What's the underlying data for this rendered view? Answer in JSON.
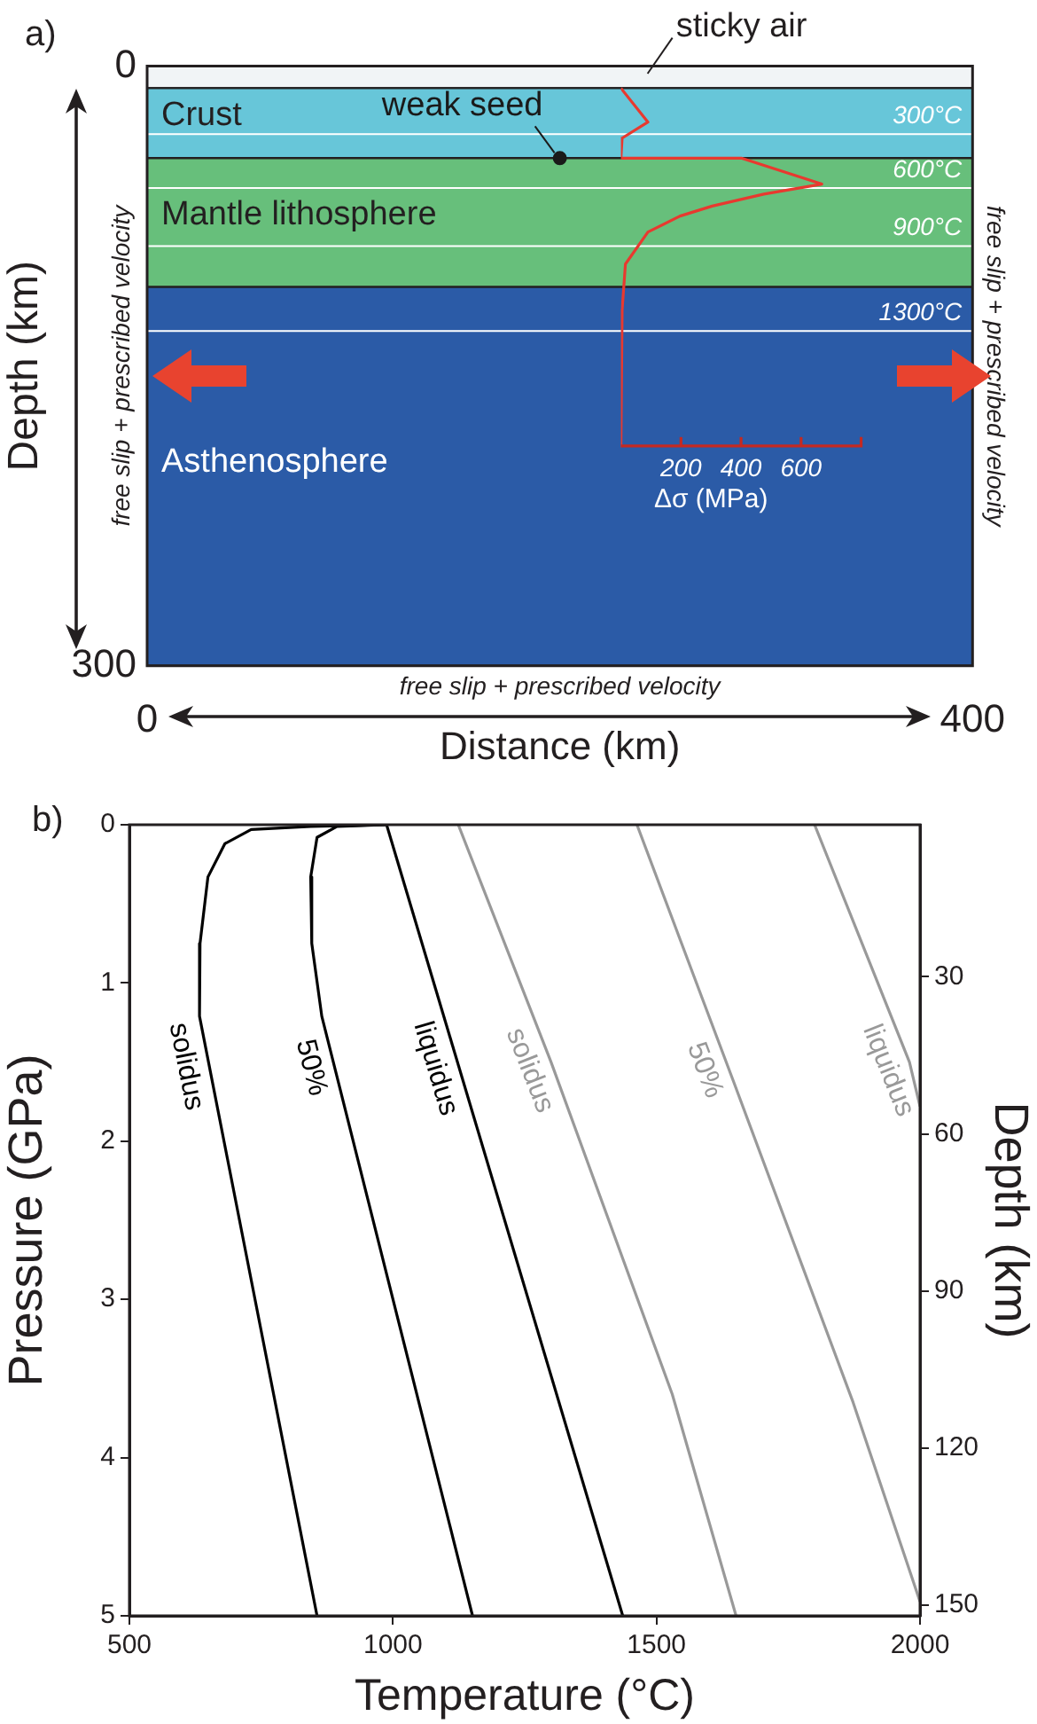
{
  "chart_data": [
    {
      "type": "line",
      "title": "a)",
      "xlabel": "Distance (km)",
      "ylabel": "Depth (km)",
      "x2label": "Δσ (MPa)",
      "xlim": [
        0,
        400
      ],
      "xticks": [
        0,
        400
      ],
      "ylim": [
        300,
        0
      ],
      "yticks": [
        0,
        300
      ],
      "x2lim": [
        0,
        800
      ],
      "x2ticks": [
        200,
        400,
        600
      ],
      "grid": false,
      "legend": false,
      "series": [
        {
          "axis": "x2",
          "color": "#e8392f",
          "x": [
            0,
            90,
            4,
            0,
            401,
            669,
            476,
            304,
            197,
            90,
            15,
            4,
            0
          ],
          "values": [
            11,
            28,
            36,
            46,
            46,
            59,
            64,
            70,
            75,
            83,
            99,
            122,
            190
          ]
        },
        {
          "type": "scatter",
          "name": "weak seed",
          "color": "#1a1a1a",
          "marker": "circle",
          "x": [
            200
          ],
          "values": [
            46
          ]
        }
      ],
      "bands": [
        {
          "axis": "y",
          "from": 0,
          "to": 11,
          "label": "sticky air",
          "color": "#f1f4f6"
        },
        {
          "axis": "y",
          "from": 11,
          "to": 46,
          "label": "Crust",
          "color": "#67c6d9"
        },
        {
          "axis": "y",
          "from": 46,
          "to": 110.5,
          "label": "Mantle lithosphere",
          "color": "#67bf7b"
        },
        {
          "axis": "y",
          "from": 110.5,
          "to": 300,
          "label": "Asthenosphere",
          "color": "#2b5ba7"
        }
      ],
      "ref_lines": [
        {
          "axis": "y",
          "value": 34,
          "label": "300°C",
          "color": "#ffffff"
        },
        {
          "axis": "y",
          "value": 61,
          "label": "600°C",
          "color": "#ffffff"
        },
        {
          "axis": "y",
          "value": 90,
          "label": "900°C",
          "color": "#ffffff"
        },
        {
          "axis": "y",
          "value": 132.5,
          "label": "1300°C",
          "color": "#ffffff"
        }
      ],
      "annotations": [
        "free slip + prescribed velocity",
        "free slip + prescribed velocity",
        "free slip + prescribed velocity"
      ]
    },
    {
      "type": "line",
      "title": "b)",
      "xlabel": "Temperature (°C)",
      "ylabel": "Pressure (GPa)",
      "y2label": "Depth (km)",
      "xlim": [
        500,
        2000
      ],
      "xticks": [
        500,
        1000,
        1500,
        2000
      ],
      "ylim": [
        5,
        0
      ],
      "yticks": [
        0,
        1,
        2,
        3,
        4,
        5
      ],
      "y2lim": [
        152,
        1
      ],
      "y2ticks": [
        30,
        60,
        90,
        120,
        150
      ],
      "grid": false,
      "legend": false,
      "series": [
        {
          "name": "solidus",
          "color": "#000000",
          "x": [
            988,
            844,
            731,
            681,
            649,
            634,
            633,
            856
          ],
          "values": [
            0,
            0.01,
            0.03,
            0.12,
            0.33,
            0.75,
            1.21,
            5
          ]
        },
        {
          "name": "50%",
          "color": "#000000",
          "x": [
            988,
            894,
            856,
            844,
            846,
            865,
            1151
          ],
          "values": [
            0,
            0.01,
            0.08,
            0.33,
            0.75,
            1.21,
            5
          ]
        },
        {
          "name": "liquidus",
          "color": "#000000",
          "x": [
            988,
            1436
          ],
          "values": [
            0,
            5
          ]
        },
        {
          "name": "solidus",
          "color": "#999999",
          "x": [
            1124,
            1300,
            1530,
            1651
          ],
          "values": [
            0,
            1.5,
            3.6,
            5
          ]
        },
        {
          "name": "50%",
          "color": "#999999",
          "x": [
            1463,
            1647,
            1873,
            2000
          ],
          "values": [
            0,
            1.63,
            3.65,
            4.91
          ]
        },
        {
          "name": "liquidus",
          "color": "#999999",
          "x": [
            1800,
            1980,
            2000
          ],
          "values": [
            0,
            1.5,
            1.78
          ]
        }
      ]
    }
  ]
}
